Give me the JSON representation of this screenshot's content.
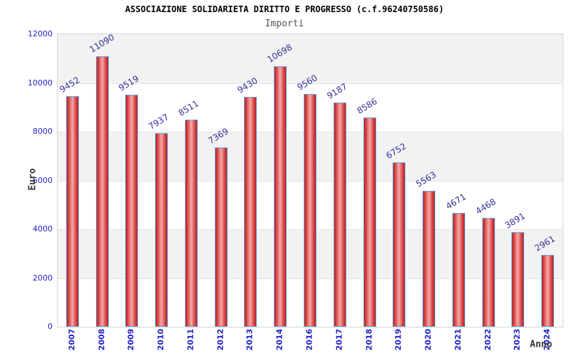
{
  "header": {
    "title": "ASSOCIAZIONE SOLIDARIETA DIRITTO E PROGRESSO (c.f.96240750586)",
    "subtitle": "Importi"
  },
  "chart_data": {
    "type": "bar",
    "title": "ASSOCIAZIONE SOLIDARIETA DIRITTO E PROGRESSO (c.f.96240750586)",
    "subtitle": "Importi",
    "xlabel": "Anno",
    "ylabel": "Euro",
    "categories": [
      "2007",
      "2008",
      "2009",
      "2010",
      "2011",
      "2012",
      "2013",
      "2014",
      "2016",
      "2017",
      "2018",
      "2019",
      "2020",
      "2021",
      "2022",
      "2023",
      "2024"
    ],
    "values": [
      9452,
      11090,
      9519,
      7937,
      8511,
      7369,
      9430,
      10698,
      9560,
      9187,
      8586,
      6752,
      5563,
      4671,
      4468,
      3891,
      2961
    ],
    "ylim": [
      0,
      12000
    ],
    "yticks": [
      0,
      2000,
      4000,
      6000,
      8000,
      10000,
      12000
    ],
    "grid": "horizontal-bands-alternating",
    "legend": "none",
    "colors": {
      "bar_edge": "#b92020",
      "bar_center": "#f5a8a8",
      "bar_border": "#66a3dd",
      "axis_tick_label": "#2222cc",
      "value_label": "#333399",
      "band_gray": "#f2f2f2",
      "band_white": "#ffffff",
      "plot_border": "#d6d6d6",
      "title": "#000000",
      "subtitle": "#555555",
      "axis_title": "#333333"
    }
  }
}
